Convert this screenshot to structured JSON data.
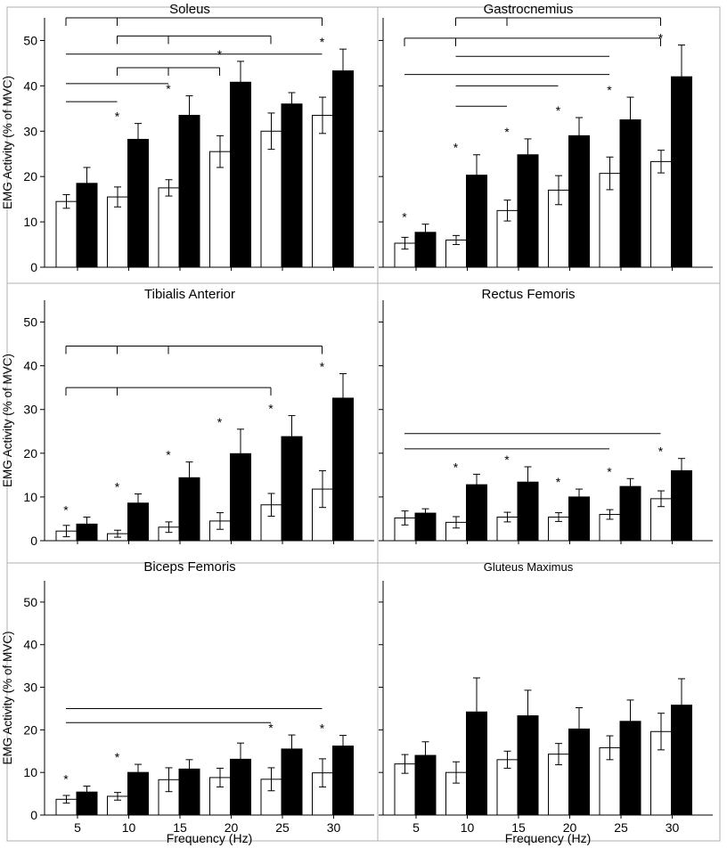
{
  "figure": {
    "ylabel": "EMG Activity (% of MVC)",
    "xlabel": "Frequency (Hz)",
    "colors": {
      "condition_a": "#ffffff",
      "condition_b": "#000000",
      "stroke": "#000000"
    }
  },
  "chart_data": [
    {
      "title": "Soleus",
      "type": "bar",
      "ylim": [
        0,
        55
      ],
      "yticks": [
        0,
        10,
        20,
        30,
        40,
        50
      ],
      "categories": [
        "5",
        "10",
        "15",
        "20",
        "25",
        "30"
      ],
      "series": [
        {
          "values": [
            14.5,
            15.5,
            17.5,
            25.5,
            30,
            33.5
          ],
          "errors": [
            1.5,
            2.2,
            1.8,
            3.5,
            4,
            4
          ]
        },
        {
          "values": [
            18.5,
            28.2,
            33.5,
            40.8,
            36,
            43.3
          ],
          "errors": [
            3.5,
            3.5,
            4.3,
            4.6,
            2.5,
            4.8
          ]
        }
      ],
      "stars": [
        false,
        true,
        true,
        true,
        false,
        true
      ],
      "brackets": [
        {
          "from": 0,
          "to": 5,
          "ticks": [
            0,
            1,
            5
          ],
          "y": 55
        },
        {
          "from": 1,
          "to": 4,
          "ticks": [
            1,
            2,
            4
          ],
          "y": 51
        },
        {
          "from": 0,
          "to": 5,
          "ticks": [],
          "y": 47
        },
        {
          "from": 1,
          "to": 3,
          "ticks": [
            1,
            2,
            3
          ],
          "y": 44
        },
        {
          "from": 0,
          "to": 2,
          "ticks": [],
          "y": 40.5
        },
        {
          "from": 0,
          "to": 1,
          "ticks": [],
          "y": 36.5
        }
      ]
    },
    {
      "title": "Gastrocnemius",
      "type": "bar",
      "ylim": [
        0,
        55
      ],
      "yticks": [],
      "categories": [
        "5",
        "10",
        "15",
        "20",
        "25",
        "30"
      ],
      "series": [
        {
          "values": [
            5.3,
            6,
            12.5,
            17,
            20.7,
            23.3
          ],
          "errors": [
            1.3,
            1,
            2.3,
            3.2,
            3.6,
            2.5
          ]
        },
        {
          "values": [
            7.7,
            20.3,
            24.8,
            29,
            32.5,
            42
          ],
          "errors": [
            1.8,
            4.5,
            3.5,
            4,
            5,
            7
          ]
        }
      ],
      "stars": [
        true,
        true,
        true,
        true,
        true,
        true
      ],
      "brackets": [
        {
          "from": 1,
          "to": 5,
          "ticks": [
            1,
            2,
            5
          ],
          "y": 55
        },
        {
          "from": 0,
          "to": 5,
          "ticks": [
            0,
            1,
            5
          ],
          "y": 50.5
        },
        {
          "from": 1,
          "to": 4,
          "ticks": [],
          "y": 46.5
        },
        {
          "from": 0,
          "to": 4,
          "ticks": [],
          "y": 42.5
        },
        {
          "from": 1,
          "to": 3,
          "ticks": [],
          "y": 40
        },
        {
          "from": 1,
          "to": 2,
          "ticks": [],
          "y": 35.5
        }
      ]
    },
    {
      "title": "Tibialis Anterior",
      "type": "bar",
      "ylim": [
        0,
        55
      ],
      "yticks": [
        0,
        10,
        20,
        30,
        40,
        50
      ],
      "categories": [
        "5",
        "10",
        "15",
        "20",
        "25",
        "30"
      ],
      "series": [
        {
          "values": [
            2.2,
            1.6,
            3.1,
            4.5,
            8.2,
            11.8
          ],
          "errors": [
            1.3,
            0.8,
            1.2,
            1.9,
            2.6,
            4.2
          ]
        },
        {
          "values": [
            3.8,
            8.6,
            14.4,
            19.9,
            23.8,
            32.6
          ],
          "errors": [
            1.6,
            2.1,
            3.6,
            5.6,
            4.8,
            5.6
          ]
        }
      ],
      "stars": [
        true,
        true,
        true,
        true,
        true,
        true
      ],
      "brackets": [
        {
          "from": 0,
          "to": 5,
          "ticks": [
            0,
            1,
            2,
            5
          ],
          "y": 44.5
        },
        {
          "from": 0,
          "to": 4,
          "ticks": [
            0,
            1,
            4
          ],
          "y": 35
        }
      ]
    },
    {
      "title": "Rectus Femoris",
      "type": "bar",
      "ylim": [
        0,
        55
      ],
      "yticks": [],
      "categories": [
        "5",
        "10",
        "15",
        "20",
        "25",
        "30"
      ],
      "series": [
        {
          "values": [
            5.2,
            4.2,
            5.4,
            5.4,
            6,
            9.6
          ],
          "errors": [
            1.6,
            1.3,
            1.1,
            1,
            1.1,
            1.8
          ]
        },
        {
          "values": [
            6.3,
            12.8,
            13.4,
            10,
            12.4,
            16
          ],
          "errors": [
            1,
            2.4,
            3.5,
            1.8,
            1.8,
            2.8
          ]
        }
      ],
      "stars": [
        false,
        true,
        true,
        true,
        true,
        true
      ],
      "brackets": [
        {
          "from": 0,
          "to": 5,
          "ticks": [],
          "y": 24.5
        },
        {
          "from": 0,
          "to": 4,
          "ticks": [],
          "y": 21
        }
      ]
    },
    {
      "title": "Biceps Femoris",
      "type": "bar",
      "ylim": [
        0,
        55
      ],
      "yticks": [
        0,
        10,
        20,
        30,
        40,
        50
      ],
      "categories": [
        "5",
        "10",
        "15",
        "20",
        "25",
        "30"
      ],
      "series": [
        {
          "values": [
            3.7,
            4.4,
            8.3,
            8.8,
            8.4,
            9.9
          ],
          "errors": [
            0.9,
            0.9,
            2.8,
            2.2,
            2.7,
            3.3
          ]
        },
        {
          "values": [
            5.4,
            10,
            10.8,
            13.1,
            15.5,
            16.2
          ],
          "errors": [
            1.4,
            1.9,
            2.2,
            3.8,
            3.3,
            2.5
          ]
        }
      ],
      "stars": [
        true,
        true,
        false,
        false,
        true,
        true
      ],
      "brackets": [
        {
          "from": 0,
          "to": 5,
          "ticks": [],
          "y": 25
        },
        {
          "from": 0,
          "to": 4,
          "ticks": [],
          "y": 21.7
        }
      ]
    },
    {
      "title": "Gluteus Maximus",
      "type": "bar",
      "ylim": [
        0,
        55
      ],
      "yticks": [],
      "categories": [
        "5",
        "10",
        "15",
        "20",
        "25",
        "30"
      ],
      "series": [
        {
          "values": [
            12,
            10,
            13,
            14.3,
            15.8,
            19.6
          ],
          "errors": [
            2.2,
            2.5,
            2,
            2.5,
            2.8,
            4.3
          ]
        },
        {
          "values": [
            14,
            24.2,
            23.3,
            20.2,
            22,
            25.8
          ],
          "errors": [
            3.2,
            8,
            6,
            5,
            5,
            6.2
          ]
        }
      ],
      "stars": [
        false,
        false,
        false,
        false,
        false,
        false
      ],
      "brackets": []
    }
  ]
}
